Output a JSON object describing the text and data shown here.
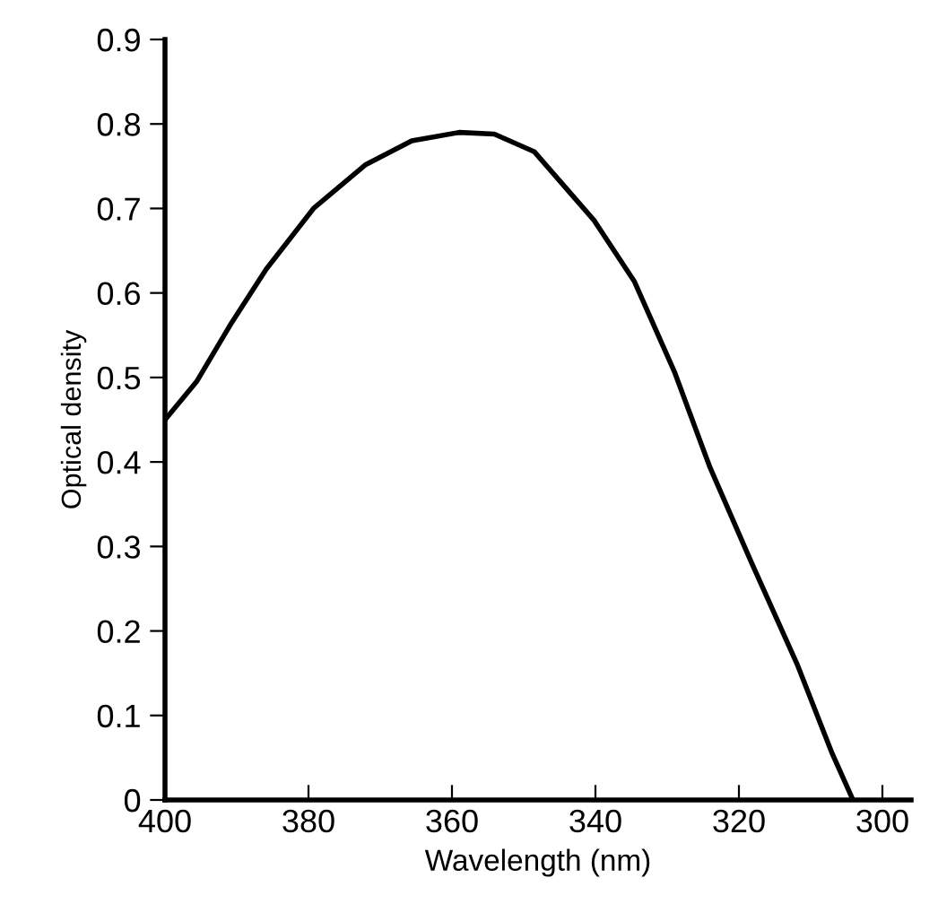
{
  "chart_data": {
    "type": "line",
    "xlabel": "Wavelength (nm)",
    "ylabel": "Optical density",
    "x": [
      400,
      395.6,
      390.7,
      385.9,
      379.3,
      372,
      365.6,
      359,
      354.1,
      348.5,
      340.2,
      334.6,
      329,
      324.1,
      318.3,
      311.9,
      307,
      304.1
    ],
    "series": [
      {
        "color": "#000000",
        "values": [
          0.45,
          0.495,
          0.565,
          0.628,
          0.7,
          0.752,
          0.78,
          0.79,
          0.788,
          0.767,
          0.686,
          0.614,
          0.507,
          0.395,
          0.282,
          0.161,
          0.055,
          0
        ]
      }
    ],
    "xlim": [
      400,
      296
    ],
    "ylim": [
      0,
      0.9
    ],
    "xticks": [
      400,
      380,
      360,
      340,
      320,
      300
    ],
    "yticks": [
      0,
      0.1,
      0.2,
      0.3,
      0.4,
      0.5,
      0.6,
      0.7,
      0.8,
      0.9
    ],
    "grid": false,
    "legend": false,
    "marker": "none",
    "line_style": "solid"
  }
}
